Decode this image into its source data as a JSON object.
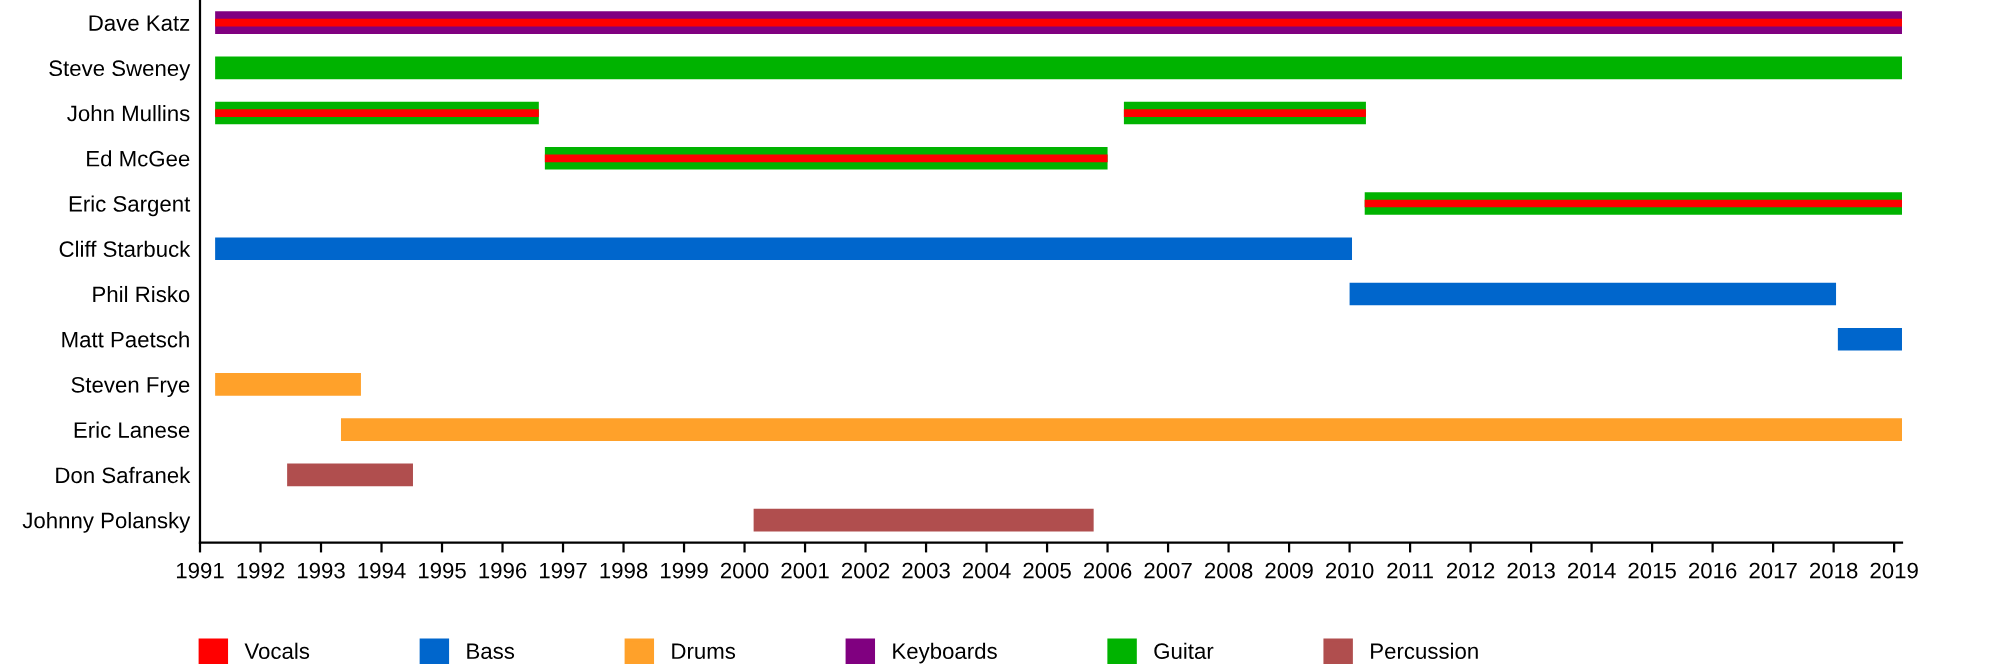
{
  "chart_data": {
    "type": "bar",
    "orientation": "horizontal",
    "categories": [
      "Dave Katz",
      "Steve Sweney",
      "John Mullins",
      "Ed McGee",
      "Eric Sargent",
      "Cliff Starbuck",
      "Phil Risko",
      "Matt Paetsch",
      "Steven Frye",
      "Eric Lanese",
      "Don Safranek",
      "Johnny Polansky"
    ],
    "series": [
      {
        "name": "Vocals",
        "color": "#ff0000",
        "base": [
          1991.25,
          null,
          1991.25,
          1996.7,
          2010.25,
          null,
          null,
          null,
          null,
          null,
          null,
          null
        ],
        "values": [
          27.88,
          null,
          5.35,
          9.3,
          8.88,
          null,
          null,
          null,
          null,
          null,
          null,
          null
        ]
      },
      {
        "name": "Bass",
        "color": "#0066cc",
        "base": [
          null,
          null,
          null,
          null,
          null,
          1991.25,
          2010.0,
          2018.07,
          null,
          null,
          null,
          null
        ],
        "values": [
          null,
          null,
          null,
          null,
          null,
          18.79,
          8.04,
          1.06,
          null,
          null,
          null,
          null
        ]
      },
      {
        "name": "Drums",
        "color": "#ffa12a",
        "base": [
          null,
          null,
          null,
          null,
          null,
          null,
          null,
          null,
          1991.25,
          1993.33,
          null,
          null
        ],
        "values": [
          null,
          null,
          null,
          null,
          null,
          null,
          null,
          null,
          2.41,
          25.8,
          null,
          null
        ]
      },
      {
        "name": "Keyboards",
        "color": "#800080",
        "base": [
          1991.25,
          null,
          null,
          null,
          null,
          null,
          null,
          null,
          null,
          null,
          null,
          null
        ],
        "values": [
          27.88,
          null,
          null,
          null,
          null,
          null,
          null,
          null,
          null,
          null,
          null,
          null
        ]
      },
      {
        "name": "Guitar",
        "color": "#00b300",
        "base": [
          null,
          1991.25,
          1991.25,
          1996.7,
          2010.25,
          null,
          null,
          null,
          null,
          null,
          null,
          null
        ],
        "values": [
          null,
          27.88,
          5.35,
          9.3,
          8.88,
          null,
          null,
          null,
          null,
          null,
          null,
          null
        ]
      },
      {
        "name": "Percussion",
        "color": "#b04e4e",
        "base": [
          null,
          null,
          null,
          null,
          null,
          null,
          null,
          null,
          null,
          null,
          1992.44,
          2000.15
        ],
        "values": [
          null,
          null,
          null,
          null,
          null,
          null,
          null,
          null,
          null,
          null,
          2.08,
          5.62
        ]
      },
      {
        "color": "#ff0000",
        "base": [
          null,
          null,
          2006.27,
          null,
          null,
          null,
          null,
          null,
          null,
          null,
          null,
          null
        ],
        "values": [
          null,
          null,
          4.0,
          null,
          null,
          null,
          null,
          null,
          null,
          null,
          null,
          null
        ]
      },
      {
        "color": "#00b300",
        "base": [
          null,
          null,
          2006.27,
          null,
          null,
          null,
          null,
          null,
          null,
          null,
          null,
          null
        ],
        "values": [
          null,
          null,
          4.0,
          null,
          null,
          null,
          null,
          null,
          null,
          null,
          null,
          null
        ]
      }
    ],
    "xlim": [
      1991,
      2019.13
    ],
    "xticks": [
      1991,
      1992,
      1993,
      1994,
      1995,
      1996,
      1997,
      1998,
      1999,
      2000,
      2001,
      2002,
      2003,
      2004,
      2005,
      2006,
      2007,
      2008,
      2009,
      2010,
      2011,
      2012,
      2013,
      2014,
      2015,
      2016,
      2017,
      2018,
      2019
    ],
    "grid": false,
    "legend": "bottom"
  }
}
